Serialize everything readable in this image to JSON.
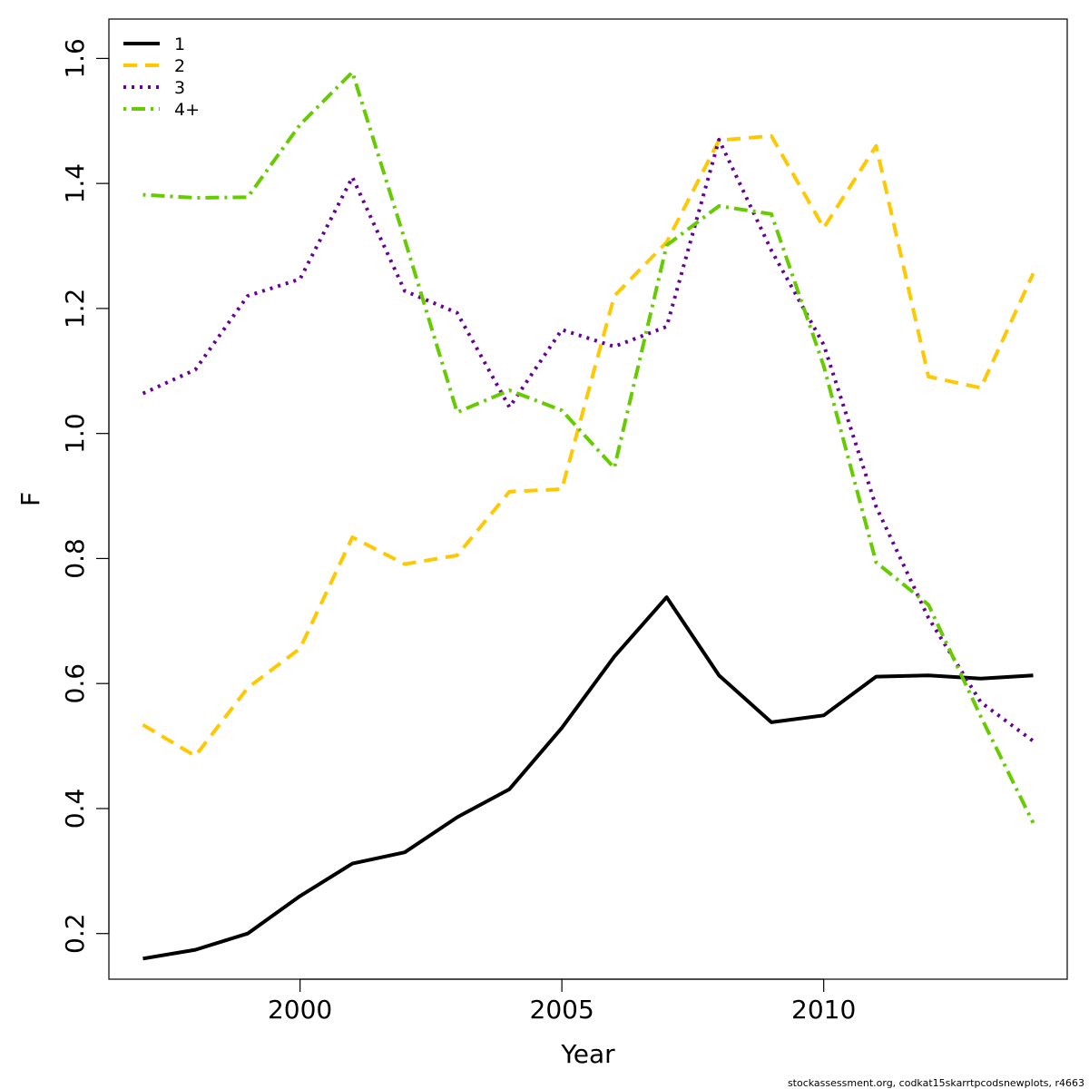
{
  "chart_data": {
    "type": "line",
    "title": "",
    "xlabel": "Year",
    "ylabel": "F",
    "xlim": [
      1996.35,
      2014.65
    ],
    "ylim": [
      0.127,
      1.663
    ],
    "xticks": [
      2000,
      2005,
      2010
    ],
    "yticks": [
      0.2,
      0.4,
      0.6,
      0.8,
      1.0,
      1.2,
      1.4,
      1.6
    ],
    "ytick_labels": [
      "0.2",
      "0.4",
      "0.6",
      "0.8",
      "1.0",
      "1.2",
      "1.4",
      "1.6"
    ],
    "grid": false,
    "legend_position": "top-left",
    "x": [
      1997,
      1998,
      1999,
      2000,
      2001,
      2002,
      2003,
      2004,
      2005,
      2006,
      2007,
      2008,
      2009,
      2010,
      2011,
      2012,
      2013,
      2014
    ],
    "series": [
      {
        "name": "1",
        "color": "#000000",
        "dash": "solid",
        "values": [
          0.16,
          0.174,
          0.2,
          0.26,
          0.312,
          0.33,
          0.386,
          0.431,
          0.529,
          0.643,
          0.738,
          0.613,
          0.538,
          0.549,
          0.611,
          0.613,
          0.608,
          0.613
        ]
      },
      {
        "name": "2",
        "color": "#ffc800",
        "dash": "dashed",
        "values": [
          0.534,
          0.484,
          0.593,
          0.656,
          0.834,
          0.791,
          0.805,
          0.907,
          0.911,
          1.22,
          1.306,
          1.469,
          1.476,
          1.329,
          1.46,
          1.091,
          1.073,
          1.256
        ]
      },
      {
        "name": "3",
        "color": "#660099",
        "dash": "dotted",
        "values": [
          1.064,
          1.102,
          1.22,
          1.247,
          1.41,
          1.228,
          1.193,
          1.042,
          1.166,
          1.139,
          1.171,
          1.47,
          1.293,
          1.142,
          0.883,
          0.705,
          0.57,
          0.508
        ]
      },
      {
        "name": "4+",
        "color": "#66cc00",
        "dash": "dotdash",
        "values": [
          1.382,
          1.377,
          1.378,
          1.494,
          1.578,
          1.31,
          1.034,
          1.069,
          1.037,
          0.945,
          1.301,
          1.364,
          1.351,
          1.108,
          0.794,
          0.726,
          0.547,
          0.377
        ]
      }
    ]
  },
  "footer": "stockassessment.org, codkat15skarrtpcodsnewplots, r4663"
}
